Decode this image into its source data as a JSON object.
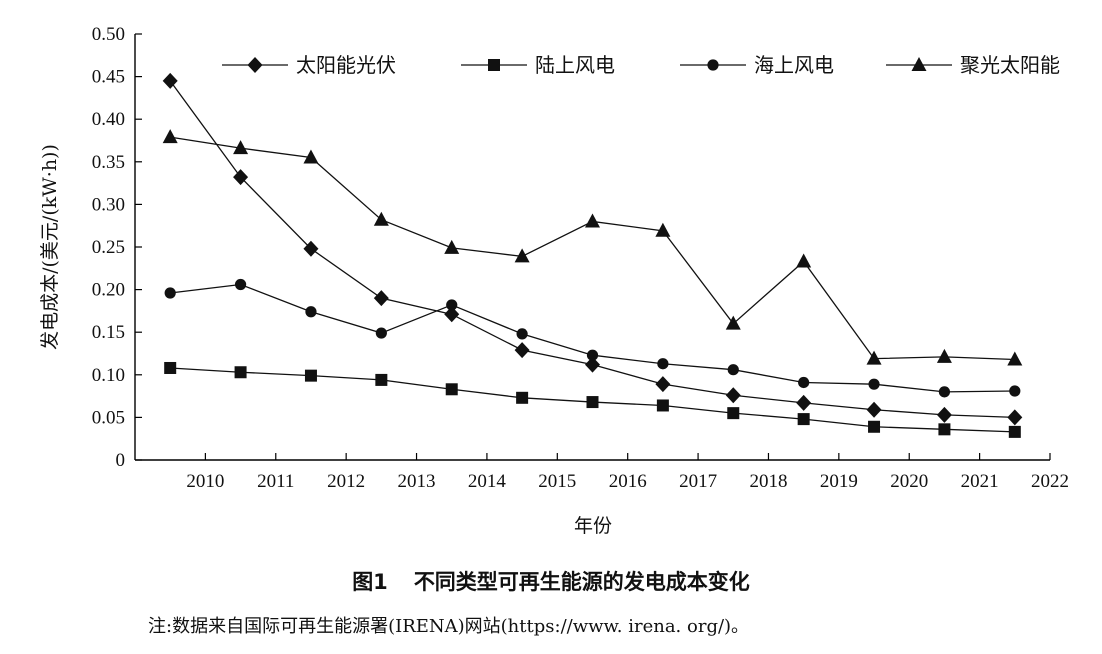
{
  "chart_data": {
    "type": "line",
    "xlabel": "年份",
    "ylabel": "发电成本/(美元/(kW·h))",
    "ylim": [
      0,
      0.5
    ],
    "yticks": [
      "0",
      "0.05",
      "0.10",
      "0.15",
      "0.20",
      "0.25",
      "0.30",
      "0.35",
      "0.40",
      "0.45",
      "0.50"
    ],
    "xlim": [
      2009,
      2022
    ],
    "xticks": [
      "2010",
      "2011",
      "2012",
      "2013",
      "2014",
      "2015",
      "2016",
      "2017",
      "2018",
      "2019",
      "2020",
      "2021",
      "2022"
    ],
    "x": [
      2009.5,
      2010.5,
      2011.5,
      2012.5,
      2013.5,
      2014.5,
      2015.5,
      2016.5,
      2017.5,
      2018.5,
      2019.5,
      2020.5,
      2021.5
    ],
    "legend_position": "top",
    "grid": false,
    "series": [
      {
        "name": "太阳能光伏",
        "marker": "diamond",
        "values": [
          0.445,
          0.332,
          0.248,
          0.19,
          0.171,
          0.129,
          0.112,
          0.089,
          0.076,
          0.067,
          0.059,
          0.053,
          0.05
        ]
      },
      {
        "name": "陆上风电",
        "marker": "square",
        "values": [
          0.108,
          0.103,
          0.099,
          0.094,
          0.083,
          0.073,
          0.068,
          0.064,
          0.055,
          0.048,
          0.039,
          0.036,
          0.033
        ]
      },
      {
        "name": "海上风电",
        "marker": "circle",
        "values": [
          0.196,
          0.206,
          0.174,
          0.149,
          0.182,
          0.148,
          0.123,
          0.113,
          0.106,
          0.091,
          0.089,
          0.08,
          0.081
        ]
      },
      {
        "name": "聚光太阳能",
        "marker": "triangle",
        "values": [
          0.379,
          0.366,
          0.355,
          0.282,
          0.249,
          0.239,
          0.28,
          0.269,
          0.16,
          0.233,
          0.119,
          0.121,
          0.118
        ]
      }
    ]
  },
  "caption": {
    "number": "图1",
    "title": "不同类型可再生能源的发电成本变化"
  },
  "note": "注:数据来自国际可再生能源署(IRENA)网站(https://www. irena. org/)。"
}
